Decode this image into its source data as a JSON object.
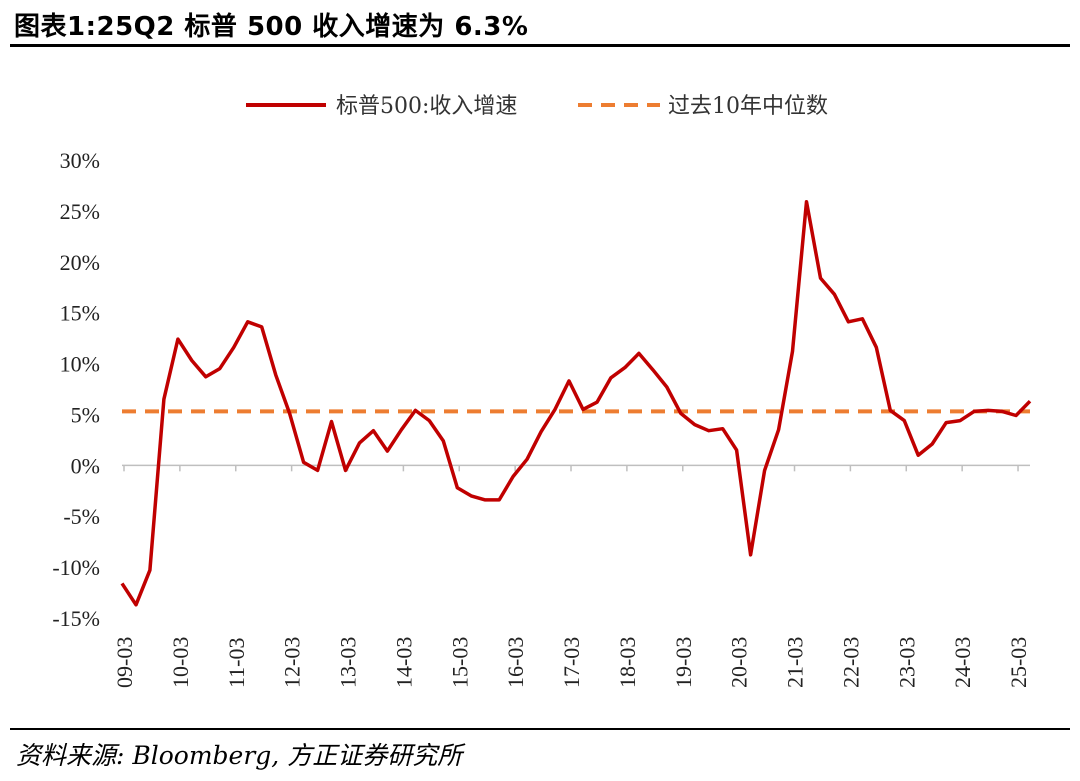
{
  "header": {
    "title": "图表1:25Q2 标普 500 收入增速为 6.3%"
  },
  "footer": {
    "source": "资料来源: Bloomberg, 方正证券研究所"
  },
  "chart_data": {
    "type": "line",
    "title": "",
    "xlabel": "",
    "ylabel": "",
    "ylim": [
      -15,
      30
    ],
    "yticks": [
      "30%",
      "25%",
      "20%",
      "15%",
      "10%",
      "5%",
      "0%",
      "-5%",
      "-10%",
      "-15%"
    ],
    "ytick_values": [
      30,
      25,
      20,
      15,
      10,
      5,
      0,
      -5,
      -10,
      -15
    ],
    "xtick_labels": [
      "09-03",
      "10-03",
      "11-03",
      "12-03",
      "13-03",
      "14-03",
      "15-03",
      "16-03",
      "17-03",
      "18-03",
      "19-03",
      "20-03",
      "21-03",
      "22-03",
      "23-03",
      "24-03",
      "25-03"
    ],
    "legend_position": "top-center",
    "grid": false,
    "series": [
      {
        "name": "标普500:收入增速",
        "color": "#c00000",
        "style": "solid",
        "values": [
          -11.6,
          -13.7,
          -10.3,
          6.5,
          12.4,
          10.3,
          8.7,
          9.5,
          11.6,
          14.1,
          13.6,
          8.9,
          5.1,
          0.3,
          -0.5,
          4.3,
          -0.5,
          2.2,
          3.4,
          1.4,
          3.5,
          5.4,
          4.4,
          2.4,
          -2.2,
          -3.0,
          -3.4,
          -3.4,
          -1.1,
          0.6,
          3.3,
          5.5,
          8.3,
          5.5,
          6.2,
          8.6,
          9.6,
          11.0,
          9.4,
          7.7,
          5.1,
          4.0,
          3.4,
          3.6,
          1.5,
          -8.8,
          -0.5,
          3.5,
          11.2,
          25.9,
          18.4,
          16.8,
          14.1,
          14.4,
          11.6,
          5.4,
          4.4,
          1.0,
          2.1,
          4.2,
          4.4,
          5.3,
          5.4,
          5.3,
          4.9,
          6.3
        ]
      },
      {
        "name": "过去10年中位数",
        "color": "#ed7d31",
        "style": "dashed",
        "values": [
          5.3
        ]
      }
    ]
  }
}
